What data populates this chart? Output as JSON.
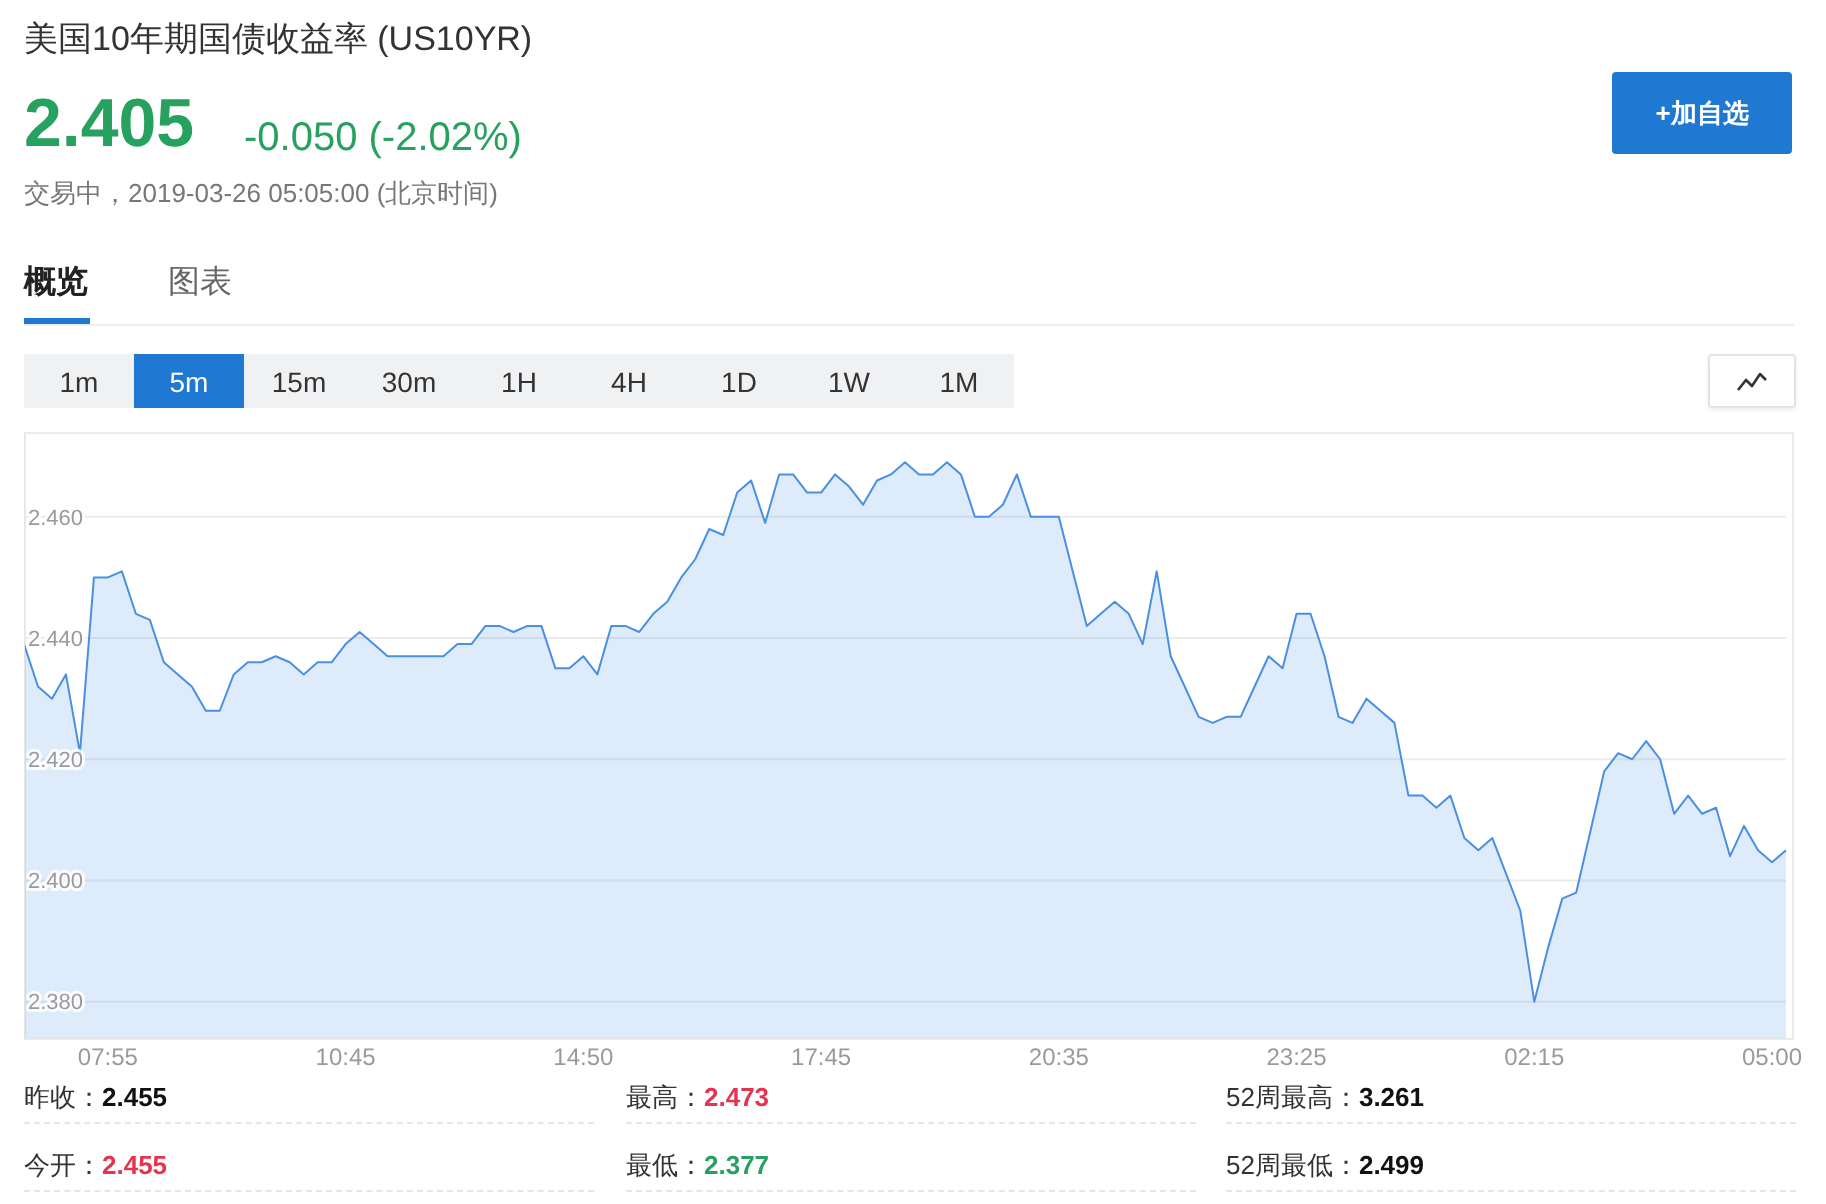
{
  "chart_data": {
    "type": "area",
    "title": "美国10年期国债收益率 (US10YR)",
    "categories": [
      null,
      null,
      null,
      null,
      null,
      null,
      "07:55",
      null,
      null,
      null,
      null,
      null,
      null,
      null,
      null,
      null,
      null,
      null,
      null,
      null,
      null,
      null,
      null,
      "10:45",
      null,
      null,
      null,
      null,
      null,
      null,
      null,
      null,
      null,
      null,
      null,
      null,
      null,
      null,
      null,
      null,
      "14:50",
      null,
      null,
      null,
      null,
      null,
      null,
      null,
      null,
      null,
      null,
      null,
      null,
      null,
      null,
      null,
      null,
      "17:45",
      null,
      null,
      null,
      null,
      null,
      null,
      null,
      null,
      null,
      null,
      null,
      null,
      null,
      null,
      null,
      null,
      "20:35",
      null,
      null,
      null,
      null,
      null,
      null,
      null,
      null,
      null,
      null,
      null,
      null,
      null,
      null,
      null,
      null,
      "23:25",
      null,
      null,
      null,
      null,
      null,
      null,
      null,
      null,
      null,
      null,
      null,
      null,
      null,
      null,
      null,
      null,
      "02:15",
      null,
      null,
      null,
      null,
      null,
      null,
      null,
      null,
      null,
      null,
      null,
      null,
      null,
      null,
      null,
      null,
      "05:00",
      null
    ],
    "series": [
      {
        "color": "#4a90e2",
        "values": [
          2.439,
          2.432,
          2.43,
          2.434,
          2.421,
          2.45,
          2.45,
          2.451,
          2.444,
          2.443,
          2.436,
          2.434,
          2.432,
          2.428,
          2.428,
          2.434,
          2.436,
          2.436,
          2.437,
          2.436,
          2.434,
          2.436,
          2.436,
          2.439,
          2.441,
          2.439,
          2.437,
          2.437,
          2.437,
          2.437,
          2.437,
          2.439,
          2.439,
          2.442,
          2.442,
          2.441,
          2.442,
          2.442,
          2.435,
          2.435,
          2.437,
          2.434,
          2.442,
          2.442,
          2.441,
          2.444,
          2.446,
          2.45,
          2.453,
          2.458,
          2.457,
          2.464,
          2.466,
          2.459,
          2.467,
          2.467,
          2.464,
          2.464,
          2.467,
          2.465,
          2.462,
          2.466,
          2.467,
          2.469,
          2.467,
          2.467,
          2.469,
          2.467,
          2.46,
          2.46,
          2.462,
          2.467,
          2.46,
          2.46,
          2.46,
          2.451,
          2.442,
          2.444,
          2.446,
          2.444,
          2.439,
          2.451,
          2.437,
          2.432,
          2.427,
          2.426,
          2.427,
          2.427,
          2.432,
          2.437,
          2.435,
          2.444,
          2.444,
          2.437,
          2.427,
          2.426,
          2.43,
          2.428,
          2.426,
          2.414,
          2.414,
          2.412,
          2.414,
          2.407,
          2.405,
          2.407,
          2.401,
          2.395,
          2.38,
          2.389,
          2.397,
          2.398,
          2.408,
          2.418,
          2.421,
          2.42,
          2.423,
          2.42,
          2.411,
          2.414,
          2.411,
          2.412,
          2.404,
          2.409,
          2.405,
          2.403,
          2.405
        ]
      }
    ],
    "ylim": [
      2.374,
      2.474
    ],
    "yticks": [
      {
        "value": 2.38,
        "label": "2.380"
      },
      {
        "value": 2.4,
        "label": "2.400"
      },
      {
        "value": 2.42,
        "label": "2.420"
      },
      {
        "value": 2.44,
        "label": "2.440"
      },
      {
        "value": 2.46,
        "label": "2.460"
      }
    ],
    "grid": "y",
    "annotations": [
      "2.405",
      "-0.050 (-2.02%)",
      "交易中，2019-03-26 05:05:00 (北京时间)",
      "+加自选",
      "概览",
      "图表",
      "1m",
      "5m",
      "15m",
      "30m",
      "1H",
      "4H",
      "1D",
      "1W",
      "1M",
      "昨收：",
      "2.455",
      "最高：",
      "2.473",
      "52周最高：",
      "3.261",
      "今开：",
      "2.455",
      "最低：",
      "2.377",
      "52周最低：",
      "2.499"
    ]
  }
}
